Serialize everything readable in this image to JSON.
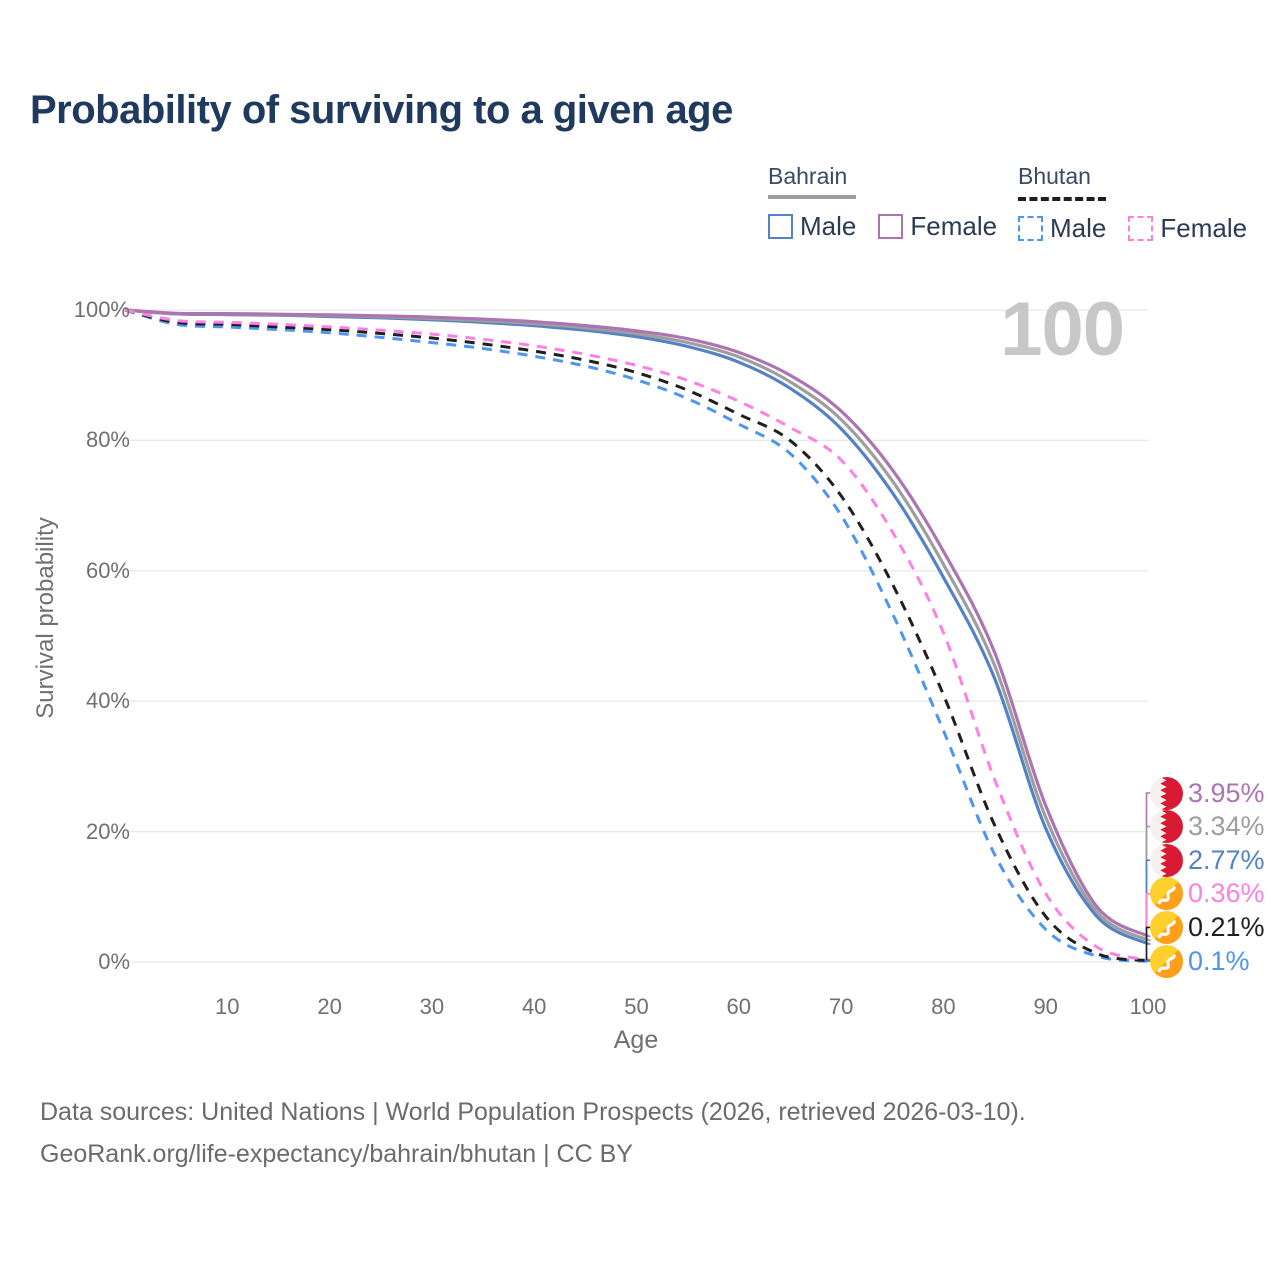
{
  "title": "Probability of surviving to a given age",
  "watermark": "100",
  "legend": {
    "groups": [
      {
        "label": "Bahrain",
        "line_style": "solid",
        "underline_color": "#9e9e9e",
        "items": [
          {
            "label": "Male",
            "color": "#5482c4",
            "dashed": false
          },
          {
            "label": "Female",
            "color": "#ad74b2",
            "dashed": false
          }
        ]
      },
      {
        "label": "Bhutan",
        "line_style": "dashed",
        "underline_color": "#1f1f1f",
        "items": [
          {
            "label": "Male",
            "color": "#4d95f2",
            "dashed": true
          },
          {
            "label": "Female",
            "color": "#ff80e3",
            "dashed": true
          }
        ]
      }
    ]
  },
  "y_axis": {
    "title": "Survival probability",
    "ticks": [
      {
        "label": "100%",
        "value": 100
      },
      {
        "label": "80%",
        "value": 80
      },
      {
        "label": "60%",
        "value": 60
      },
      {
        "label": "40%",
        "value": 40
      },
      {
        "label": "20%",
        "value": 20
      },
      {
        "label": "0%",
        "value": 0
      }
    ]
  },
  "x_axis": {
    "title": "Age",
    "ticks": [
      {
        "label": "10",
        "value": 10
      },
      {
        "label": "20",
        "value": 20
      },
      {
        "label": "30",
        "value": 30
      },
      {
        "label": "40",
        "value": 40
      },
      {
        "label": "50",
        "value": 50
      },
      {
        "label": "60",
        "value": 60
      },
      {
        "label": "70",
        "value": 70
      },
      {
        "label": "80",
        "value": 80
      },
      {
        "label": "90",
        "value": 90
      },
      {
        "label": "100",
        "value": 100
      }
    ]
  },
  "end_labels": [
    {
      "text": "3.95%",
      "value": 3.95,
      "color": "#ad74b2",
      "flag": "bahrain",
      "series": "Bahrain Female"
    },
    {
      "text": "3.34%",
      "value": 3.34,
      "color": "#9e9e9e",
      "flag": "bahrain",
      "series": "Bahrain Both sexes"
    },
    {
      "text": "2.77%",
      "value": 2.77,
      "color": "#5482c4",
      "flag": "bahrain",
      "series": "Bahrain Male"
    },
    {
      "text": "0.36%",
      "value": 0.36,
      "color": "#ff80e3",
      "flag": "bhutan",
      "series": "Bhutan Female"
    },
    {
      "text": "0.21%",
      "value": 0.21,
      "color": "#1f1f1f",
      "flag": "bhutan",
      "series": "Bhutan Both sexes"
    },
    {
      "text": "0.1%",
      "value": 0.1,
      "color": "#4d95f2",
      "flag": "bhutan",
      "series": "Bhutan Male"
    }
  ],
  "footer": {
    "line1": "Data sources: United Nations | World Population Prospects (2026, retrieved 2026-03-10).",
    "line2": "GeoRank.org/life-expectancy/bahrain/bhutan | CC BY"
  },
  "chart_data": {
    "type": "line",
    "title": "Probability of surviving to a given age",
    "xlabel": "Age",
    "ylabel": "Survival probability",
    "xlim": [
      0,
      100
    ],
    "ylim": [
      0,
      100
    ],
    "grid": "horizontal-only",
    "legend_position": "top-right",
    "x": [
      0,
      5,
      10,
      15,
      20,
      25,
      30,
      35,
      40,
      45,
      50,
      55,
      60,
      65,
      70,
      75,
      80,
      85,
      90,
      95,
      100
    ],
    "series": [
      {
        "name": "Bahrain Male",
        "country": "Bahrain",
        "sex": "Male",
        "style": "solid",
        "color": "#5482c4",
        "values": [
          100,
          99.4,
          99.3,
          99.2,
          99.0,
          98.8,
          98.5,
          98.1,
          97.6,
          96.9,
          95.9,
          94.4,
          92.0,
          88.0,
          81.8,
          72.0,
          59.0,
          43.5,
          20.5,
          7.0,
          2.77
        ],
        "end_label": "2.77%"
      },
      {
        "name": "Bahrain Both sexes",
        "country": "Bahrain",
        "sex": "Both sexes",
        "style": "solid",
        "color": "#9e9e9e",
        "values": [
          100,
          99.45,
          99.38,
          99.28,
          99.13,
          98.95,
          98.7,
          98.35,
          97.9,
          97.25,
          96.35,
          95.0,
          92.8,
          89.0,
          83.2,
          73.8,
          61.0,
          45.5,
          22.2,
          7.7,
          3.34
        ],
        "end_label": "3.34%"
      },
      {
        "name": "Bahrain Female",
        "country": "Bahrain",
        "sex": "Female",
        "style": "solid",
        "color": "#ad74b2",
        "values": [
          100,
          99.5,
          99.45,
          99.35,
          99.25,
          99.1,
          98.9,
          98.6,
          98.2,
          97.6,
          96.8,
          95.6,
          93.5,
          90.0,
          84.5,
          75.5,
          63.0,
          47.5,
          24.0,
          8.5,
          3.95
        ],
        "end_label": "3.95%"
      },
      {
        "name": "Bhutan Male",
        "country": "Bhutan",
        "sex": "Male",
        "style": "dashed",
        "color": "#4d95f2",
        "values": [
          100,
          97.8,
          97.4,
          97.0,
          96.5,
          95.8,
          95.0,
          94.1,
          92.9,
          91.4,
          89.3,
          86.4,
          82.5,
          78.0,
          68.5,
          53.5,
          35.5,
          16.5,
          5.0,
          0.9,
          0.1
        ],
        "end_label": "0.1%"
      },
      {
        "name": "Bhutan Both sexes",
        "country": "Bhutan",
        "sex": "Both sexes",
        "style": "dashed",
        "color": "#1f1f1f",
        "values": [
          100,
          98.1,
          97.8,
          97.4,
          97.0,
          96.4,
          95.7,
          94.8,
          93.7,
          92.3,
          90.4,
          87.7,
          84.0,
          80.0,
          71.5,
          58.0,
          41.0,
          21.0,
          7.0,
          1.3,
          0.21
        ],
        "end_label": "0.21%"
      },
      {
        "name": "Bhutan Female",
        "country": "Bhutan",
        "sex": "Female",
        "style": "dashed",
        "color": "#ff80e3",
        "values": [
          100,
          98.4,
          98.1,
          97.8,
          97.4,
          96.9,
          96.3,
          95.5,
          94.5,
          93.2,
          91.5,
          89.2,
          86.0,
          82.0,
          77.0,
          66.0,
          50.5,
          28.0,
          10.5,
          2.3,
          0.36
        ],
        "end_label": "0.36%"
      }
    ]
  },
  "colors": {
    "title": "#1f3a5e",
    "legend_text": "#2b3a55",
    "axis_text": "#6e7076",
    "grid": "#e8e8e8",
    "watermark": "#c7c7c7",
    "footer_text": "#6b6b6b",
    "bahrain_flag_red": "#d81b32",
    "bhutan_flag_yellow": "#ffd02c",
    "bhutan_flag_orange": "#ff9f1c"
  }
}
